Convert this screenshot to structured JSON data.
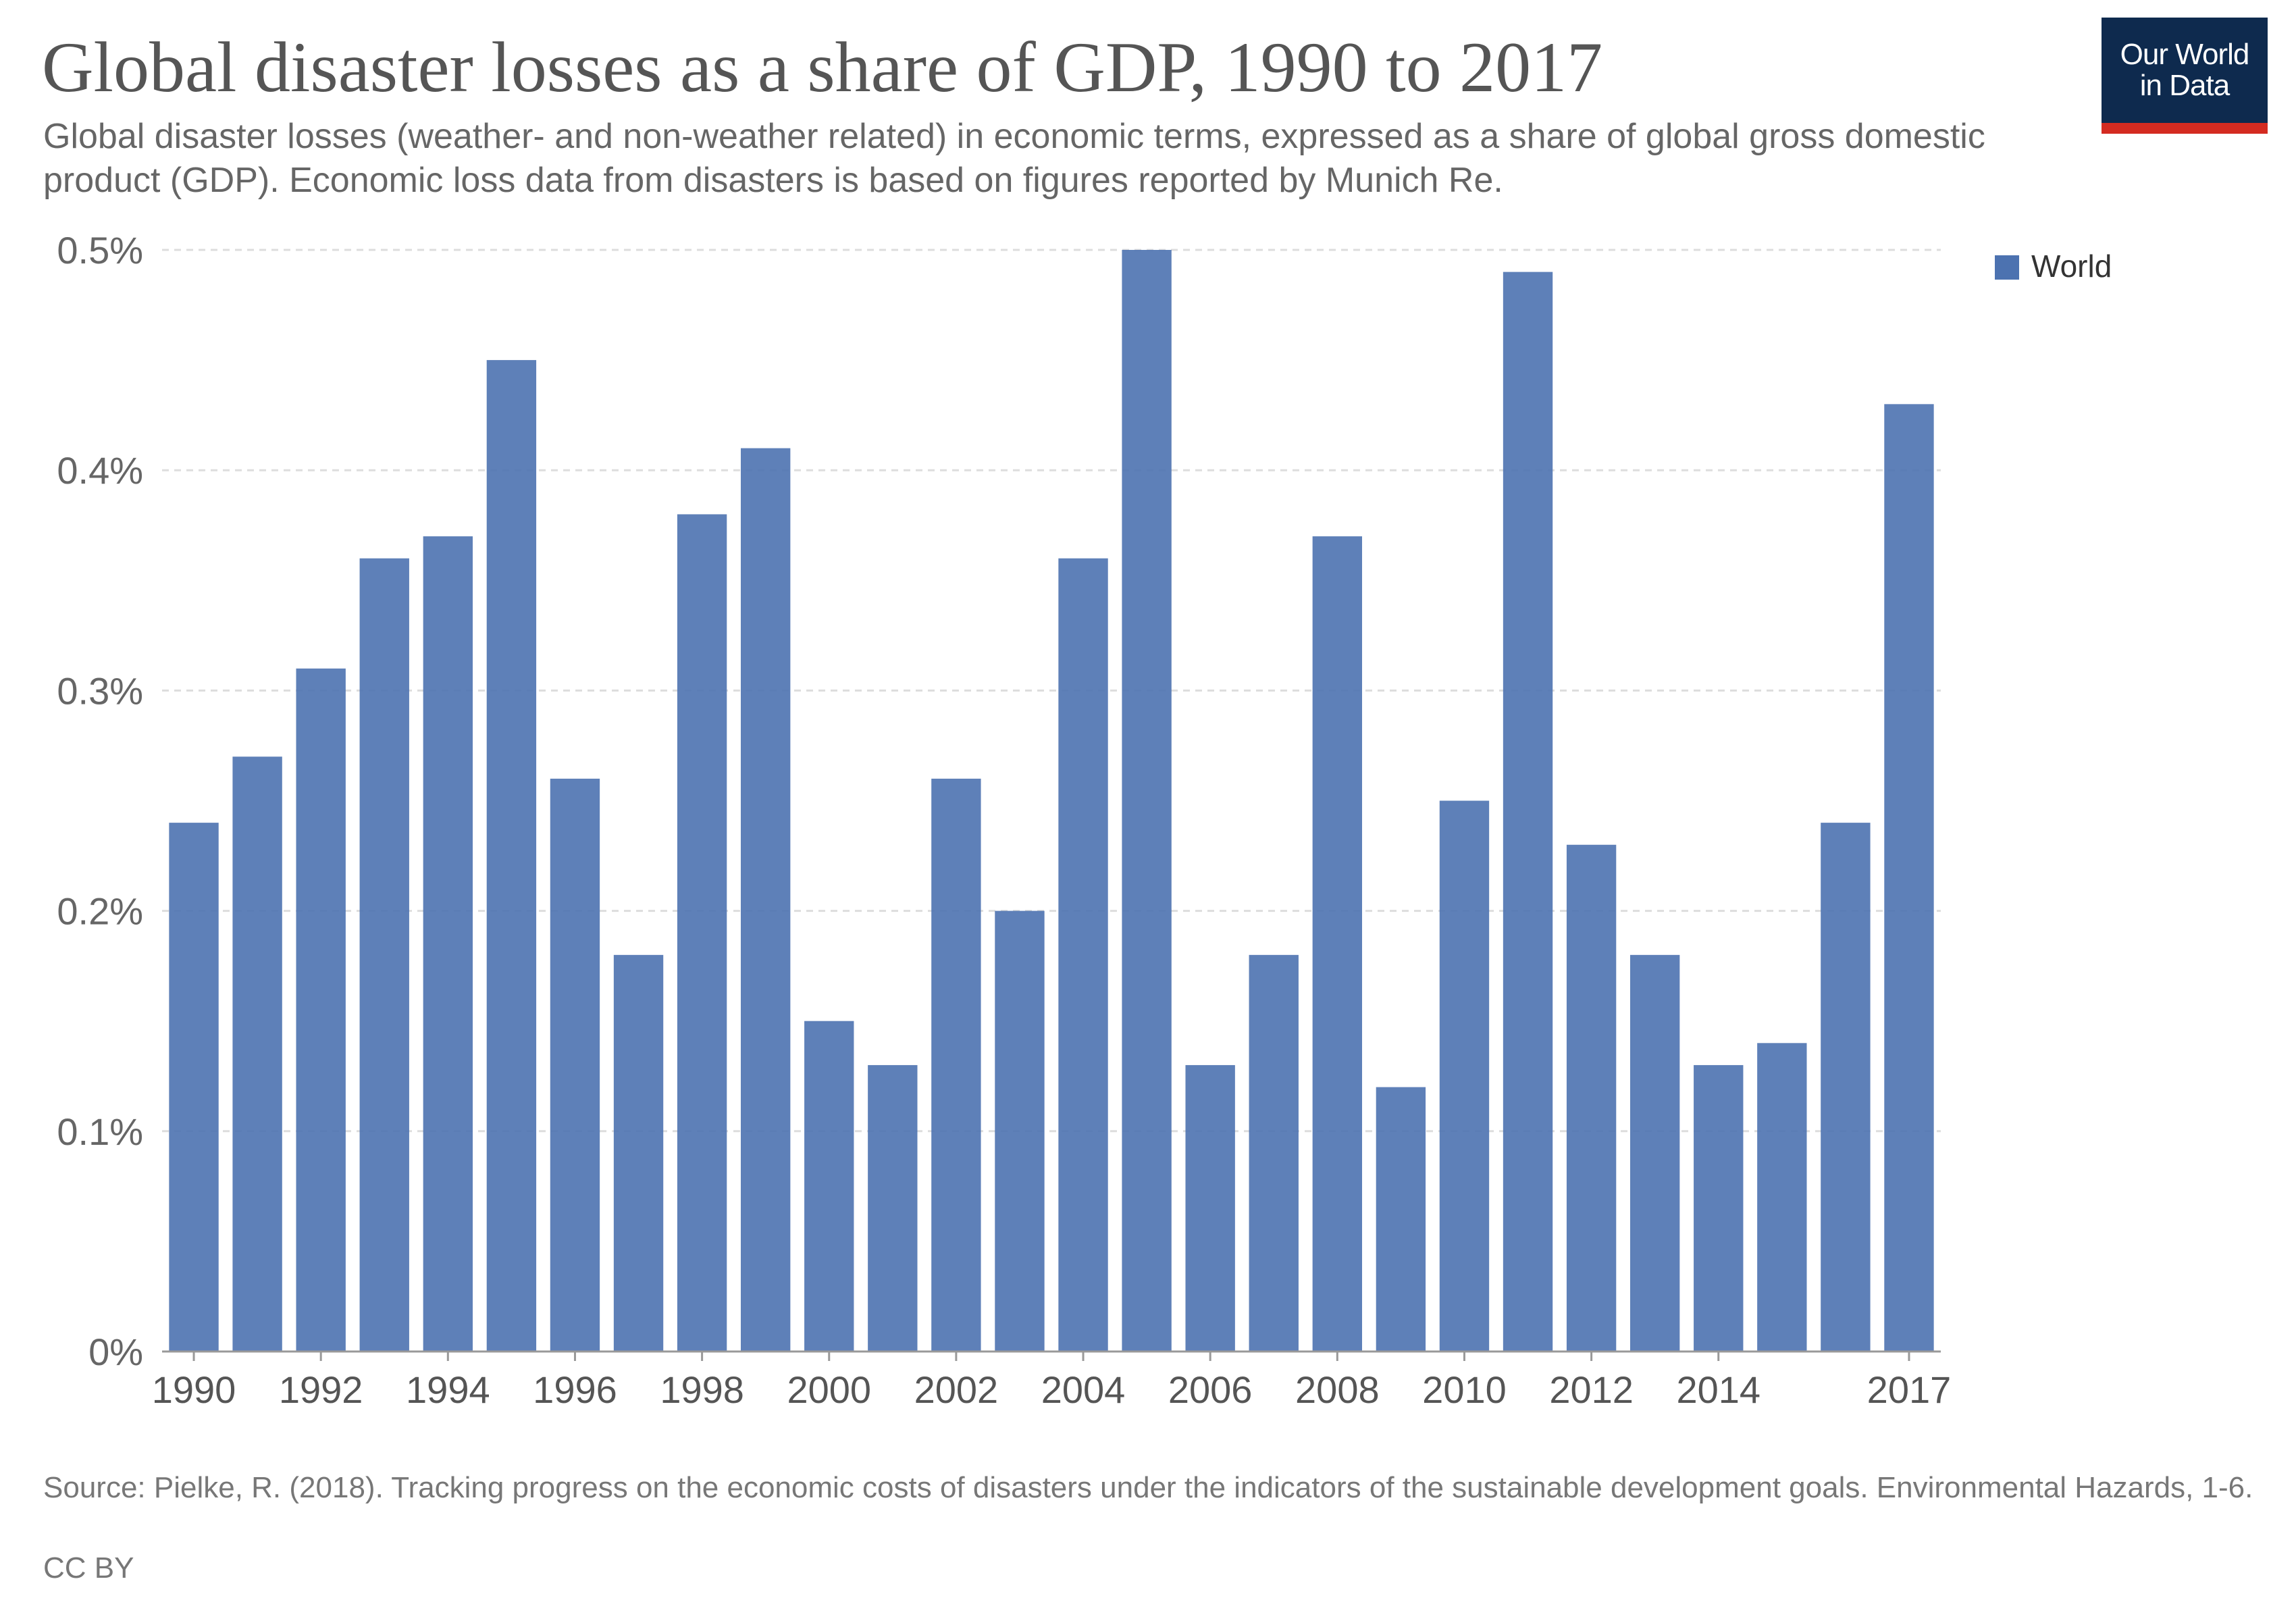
{
  "header": {
    "title": "Global disaster losses as a share of GDP, 1990 to 2017",
    "subtitle": "Global disaster losses (weather- and non-weather related) in economic terms, expressed as a share of global gross domestic product (GDP). Economic loss data from disasters is based on figures reported by Munich Re."
  },
  "logo": {
    "line1": "Our World",
    "line2": "in Data"
  },
  "footer": {
    "source": "Source: Pielke, R. (2018). Tracking progress on the economic costs of disasters under the indicators of the sustainable development goals. Environmental Hazards, 1-6.",
    "license": "CC BY"
  },
  "chart_data": {
    "type": "bar",
    "title": "Global disaster losses as a share of GDP, 1990 to 2017",
    "categories": [
      1990,
      1991,
      1992,
      1993,
      1994,
      1995,
      1996,
      1997,
      1998,
      1999,
      2000,
      2001,
      2002,
      2003,
      2004,
      2005,
      2006,
      2007,
      2008,
      2009,
      2010,
      2011,
      2012,
      2013,
      2014,
      2015,
      2016,
      2017
    ],
    "series": [
      {
        "name": "World",
        "color": "#4c72b0",
        "values": [
          0.24,
          0.27,
          0.31,
          0.36,
          0.37,
          0.45,
          0.26,
          0.18,
          0.38,
          0.41,
          0.15,
          0.13,
          0.26,
          0.2,
          0.36,
          0.5,
          0.13,
          0.18,
          0.37,
          0.12,
          0.25,
          0.49,
          0.23,
          0.18,
          0.13,
          0.14,
          0.24,
          0.43
        ]
      }
    ],
    "ylim": [
      0,
      0.5
    ],
    "yticks": [
      0,
      0.1,
      0.2,
      0.3,
      0.4,
      0.5
    ],
    "ytick_labels": [
      "0%",
      "0.1%",
      "0.2%",
      "0.3%",
      "0.4%",
      "0.5%"
    ],
    "xtick_labels": [
      "1990",
      "1992",
      "1994",
      "1996",
      "1998",
      "2000",
      "2002",
      "2004",
      "2006",
      "2008",
      "2010",
      "2012",
      "2014",
      "2017"
    ],
    "grid": true,
    "legend": {
      "position": "top-right",
      "label": "World"
    },
    "colors": {
      "bar": "#4c72b0",
      "grid": "#dddddd",
      "axis": "#999999"
    }
  }
}
